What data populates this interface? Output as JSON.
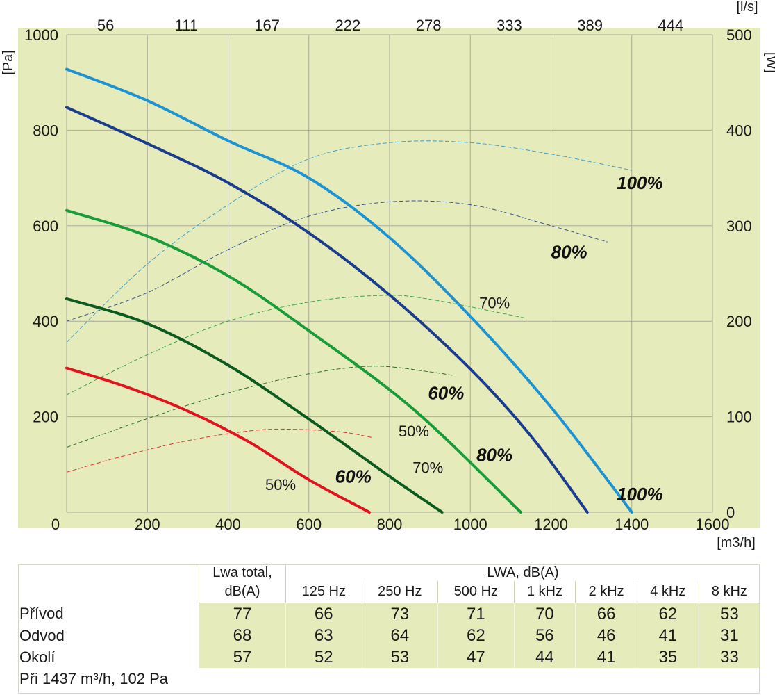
{
  "chart_data": {
    "type": "line",
    "x_axis": {
      "unit": "[m3/h]",
      "ticks": [
        0,
        200,
        400,
        600,
        800,
        1000,
        1200,
        1400,
        1600
      ],
      "range": [
        0,
        1600
      ]
    },
    "x2_axis": {
      "unit": "[l/s]",
      "ticks": [
        "56",
        "111",
        "167",
        "222",
        "278",
        "333",
        "389",
        "444"
      ]
    },
    "y_axis": {
      "unit": "[Pa]",
      "ticks": [
        0,
        200,
        400,
        600,
        800,
        1000
      ],
      "range": [
        0,
        1000
      ]
    },
    "y2_axis": {
      "unit": "[W]",
      "ticks": [
        0,
        100,
        200,
        300,
        400,
        500
      ],
      "range": [
        0,
        500
      ]
    },
    "grid": true,
    "pressure_series": [
      {
        "label": "50%",
        "color": "#e0141e",
        "points": [
          [
            0,
            302
          ],
          [
            150,
            262
          ],
          [
            300,
            212
          ],
          [
            450,
            148
          ],
          [
            600,
            68
          ],
          [
            750,
            0
          ]
        ]
      },
      {
        "label": "60%",
        "color": "#0c5a1e",
        "points": [
          [
            0,
            447
          ],
          [
            200,
            395
          ],
          [
            400,
            308
          ],
          [
            600,
            195
          ],
          [
            800,
            75
          ],
          [
            930,
            0
          ]
        ]
      },
      {
        "label": "70%",
        "color": "#1a9b3a",
        "points": [
          [
            0,
            632
          ],
          [
            200,
            578
          ],
          [
            400,
            495
          ],
          [
            600,
            380
          ],
          [
            860,
            215
          ],
          [
            1125,
            0
          ]
        ]
      },
      {
        "label": "80%",
        "color": "#1b3c8c",
        "points": [
          [
            0,
            848
          ],
          [
            200,
            772
          ],
          [
            400,
            690
          ],
          [
            600,
            585
          ],
          [
            800,
            455
          ],
          [
            1000,
            300
          ],
          [
            1150,
            160
          ],
          [
            1290,
            0
          ]
        ]
      },
      {
        "label": "100%",
        "color": "#1e93d2",
        "points": [
          [
            0,
            928
          ],
          [
            200,
            862
          ],
          [
            400,
            778
          ],
          [
            600,
            700
          ],
          [
            800,
            575
          ],
          [
            1000,
            410
          ],
          [
            1200,
            220
          ],
          [
            1400,
            0
          ]
        ]
      }
    ],
    "power_series": [
      {
        "label": "50%",
        "color": "#e0141e",
        "points": [
          [
            0,
            42
          ],
          [
            150,
            60
          ],
          [
            300,
            75
          ],
          [
            450,
            85
          ],
          [
            550,
            87
          ],
          [
            680,
            84
          ],
          [
            760,
            78
          ]
        ]
      },
      {
        "label": "60%",
        "color": "#0c5a1e",
        "points": [
          [
            0,
            68
          ],
          [
            200,
            98
          ],
          [
            400,
            125
          ],
          [
            600,
            145
          ],
          [
            760,
            153
          ],
          [
            900,
            147
          ],
          [
            960,
            143
          ]
        ]
      },
      {
        "label": "70%",
        "color": "#1a9b3a",
        "points": [
          [
            0,
            123
          ],
          [
            200,
            165
          ],
          [
            400,
            200
          ],
          [
            600,
            220
          ],
          [
            780,
            227
          ],
          [
            900,
            223
          ],
          [
            1140,
            203
          ]
        ]
      },
      {
        "label": "80%",
        "color": "#1b3c8c",
        "points": [
          [
            0,
            200
          ],
          [
            200,
            230
          ],
          [
            400,
            275
          ],
          [
            600,
            310
          ],
          [
            800,
            325
          ],
          [
            1000,
            322
          ],
          [
            1200,
            300
          ],
          [
            1340,
            283
          ]
        ]
      },
      {
        "label": "100%",
        "color": "#1e93d2",
        "points": [
          [
            0,
            178
          ],
          [
            200,
            260
          ],
          [
            400,
            322
          ],
          [
            600,
            370
          ],
          [
            800,
            387
          ],
          [
            1000,
            387
          ],
          [
            1200,
            375
          ],
          [
            1400,
            358
          ]
        ]
      }
    ],
    "annotations": [
      {
        "text": "100%",
        "style": "bold",
        "x": 1420,
        "y": 690
      },
      {
        "text": "80%",
        "style": "bold",
        "x": 1245,
        "y": 545
      },
      {
        "text": "70%",
        "style": "normal",
        "x": 1060,
        "y": 440
      },
      {
        "text": "60%",
        "style": "bold",
        "x": 940,
        "y": 250
      },
      {
        "text": "50%",
        "style": "normal",
        "x": 860,
        "y": 172
      },
      {
        "text": "100%",
        "style": "bold",
        "x": 1420,
        "y": 38
      },
      {
        "text": "80%",
        "style": "bold",
        "x": 1060,
        "y": 120
      },
      {
        "text": "70%",
        "style": "normal",
        "x": 895,
        "y": 95
      },
      {
        "text": "60%",
        "style": "bold",
        "x": 710,
        "y": 75
      },
      {
        "text": "50%",
        "style": "normal",
        "x": 530,
        "y": 60
      }
    ]
  },
  "table": {
    "header_total_line1": "Lwa total,",
    "header_total_line2": "dB(A)",
    "header_band": "LWA, dB(A)",
    "bands": [
      "125 Hz",
      "250 Hz",
      "500 Hz",
      "1 kHz",
      "2 kHz",
      "4 kHz",
      "8 kHz"
    ],
    "rows": [
      {
        "label": "Přívod",
        "total": "77",
        "values": [
          "66",
          "73",
          "71",
          "70",
          "66",
          "62",
          "53"
        ]
      },
      {
        "label": "Odvod",
        "total": "68",
        "values": [
          "63",
          "64",
          "62",
          "56",
          "46",
          "41",
          "31"
        ]
      },
      {
        "label": "Okolí",
        "total": "57",
        "values": [
          "52",
          "53",
          "47",
          "44",
          "41",
          "35",
          "33"
        ]
      }
    ],
    "footnote": "Při 1437 m³/h, 102 Pa"
  },
  "colors": {
    "plot_bg": "#e6ebbc",
    "grid": "#a9ab9a",
    "table_cell_bg": "#e6ebbc"
  }
}
